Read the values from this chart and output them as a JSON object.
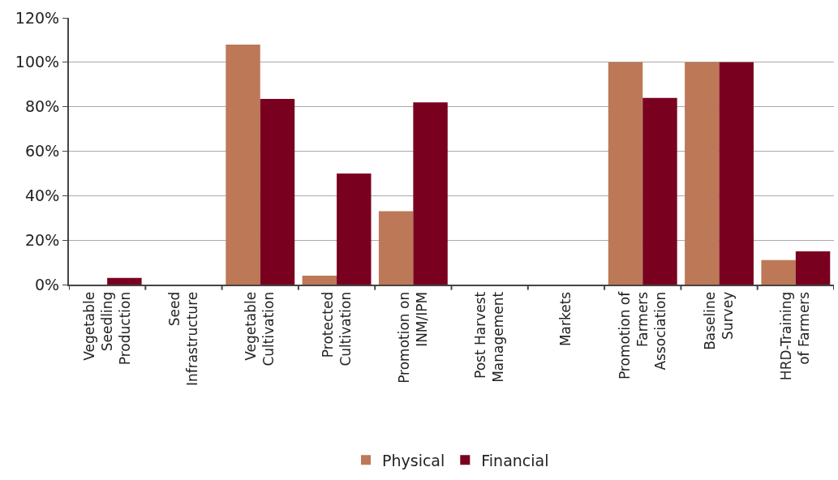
{
  "chart_data": {
    "type": "bar",
    "categories": [
      "Vegetable Seedling Production",
      "Seed Infrastructure",
      "Vegetable Cultivation",
      "Protected Cultivation",
      "Promotion on INM/IPM",
      "Post Harvest Management",
      "Markets",
      "Promotion of Farmers Association",
      "Baseline Survey",
      "HRD-Training of Farmers"
    ],
    "series": [
      {
        "name": "Physical",
        "color": "#bc7857",
        "values": [
          0,
          0,
          108,
          4,
          33,
          0,
          0,
          100,
          100,
          11
        ]
      },
      {
        "name": "Financial",
        "color": "#7a0020",
        "values": [
          3,
          0,
          83.5,
          50,
          82,
          0,
          0,
          84,
          100,
          15
        ]
      }
    ],
    "ylim": [
      0,
      120
    ],
    "yticks": [
      {
        "value": 0,
        "label": "0%"
      },
      {
        "value": 20,
        "label": "20%"
      },
      {
        "value": 40,
        "label": "40%"
      },
      {
        "value": 60,
        "label": "60%"
      },
      {
        "value": 80,
        "label": "80%"
      },
      {
        "value": 100,
        "label": "100%"
      },
      {
        "value": 120,
        "label": "120%"
      }
    ],
    "grid": "y",
    "legend": "bottom"
  }
}
